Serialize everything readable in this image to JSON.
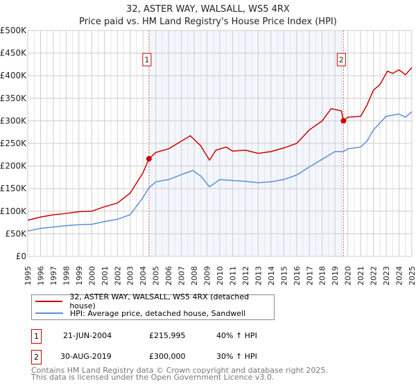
{
  "chart_data": {
    "type": "line",
    "title": "32, ASTER WAY, WALSALL, WS5 4RX",
    "subtitle": "Price paid vs. HM Land Registry's House Price Index (HPI)",
    "xlim": [
      1995,
      2025
    ],
    "ylim": [
      0,
      500000
    ],
    "x_ticks": [
      "1995",
      "1996",
      "1997",
      "1998",
      "1999",
      "2000",
      "2001",
      "2002",
      "2003",
      "2004",
      "2005",
      "2006",
      "2007",
      "2008",
      "2009",
      "2010",
      "2011",
      "2012",
      "2013",
      "2014",
      "2015",
      "2016",
      "2017",
      "2018",
      "2019",
      "2020",
      "2021",
      "2022",
      "2023",
      "2024",
      "2025"
    ],
    "y_ticks": [
      {
        "v": 0,
        "label": "£0"
      },
      {
        "v": 50000,
        "label": "£50K"
      },
      {
        "v": 100000,
        "label": "£100K"
      },
      {
        "v": 150000,
        "label": "£150K"
      },
      {
        "v": 200000,
        "label": "£200K"
      },
      {
        "v": 250000,
        "label": "£250K"
      },
      {
        "v": 300000,
        "label": "£300K"
      },
      {
        "v": 350000,
        "label": "£350K"
      },
      {
        "v": 400000,
        "label": "£400K"
      },
      {
        "v": 450000,
        "label": "£450K"
      },
      {
        "v": 500000,
        "label": "£500K"
      }
    ],
    "grid": true,
    "series": [
      {
        "name": "32, ASTER WAY, WALSALL, WS5 4RX (detached house)",
        "color": "#cc0000",
        "x": [
          1995,
          1996,
          1997,
          1998,
          1999,
          2000,
          2001,
          2002,
          2003,
          2004,
          2004.47,
          2005,
          2006,
          2007,
          2007.7,
          2008.5,
          2009.2,
          2009.7,
          2010.5,
          2011,
          2012,
          2013,
          2014,
          2015,
          2016,
          2017,
          2018,
          2018.7,
          2019.5,
          2019.66,
          2020,
          2021,
          2021.5,
          2022,
          2022.5,
          2023.1,
          2023.5,
          2024,
          2024.5,
          2025
        ],
        "y": [
          80000,
          87000,
          92000,
          95000,
          99000,
          100000,
          110000,
          118000,
          140000,
          185000,
          215995,
          230000,
          238000,
          255000,
          267000,
          245000,
          213000,
          235000,
          242000,
          233000,
          235000,
          228000,
          232000,
          240000,
          250000,
          280000,
          300000,
          327000,
          322000,
          300000,
          308000,
          310000,
          335000,
          368000,
          380000,
          410000,
          405000,
          413000,
          402000,
          418000
        ]
      },
      {
        "name": "HPI: Average price, detached house, Sandwell",
        "color": "#5b8fd6",
        "x": [
          1995,
          1996,
          1997,
          1998,
          1999,
          2000,
          2001,
          2002,
          2003,
          2004,
          2004.47,
          2005,
          2006,
          2007,
          2007.9,
          2008.5,
          2009.2,
          2010,
          2011,
          2012,
          2013,
          2014,
          2015,
          2016,
          2017,
          2018,
          2019,
          2019.66,
          2020,
          2021,
          2021.5,
          2022,
          2023,
          2024,
          2024.5,
          2025
        ],
        "y": [
          56000,
          62000,
          65000,
          68000,
          70000,
          71000,
          77000,
          82000,
          92000,
          130000,
          152000,
          165000,
          170000,
          181000,
          190000,
          178000,
          154000,
          170000,
          168000,
          166000,
          163000,
          165000,
          170000,
          180000,
          198000,
          215000,
          232000,
          232000,
          238000,
          242000,
          255000,
          280000,
          310000,
          315000,
          308000,
          320000
        ]
      }
    ],
    "annotations": [
      {
        "label": "1",
        "x": 2004.47,
        "y": 215995
      },
      {
        "label": "2",
        "x": 2019.66,
        "y": 300000
      }
    ],
    "shaded_range": [
      2004.47,
      2019.66
    ]
  },
  "sales": [
    {
      "num": "1",
      "date": "21-JUN-2004",
      "price": "£215,995",
      "hpi": "40% ↑ HPI"
    },
    {
      "num": "2",
      "date": "30-AUG-2019",
      "price": "£300,000",
      "hpi": "30% ↑ HPI"
    }
  ],
  "footer": {
    "line1": "Contains HM Land Registry data © Crown copyright and database right 2025.",
    "line2": "This data is licensed under the Open Government Licence v3.0."
  }
}
